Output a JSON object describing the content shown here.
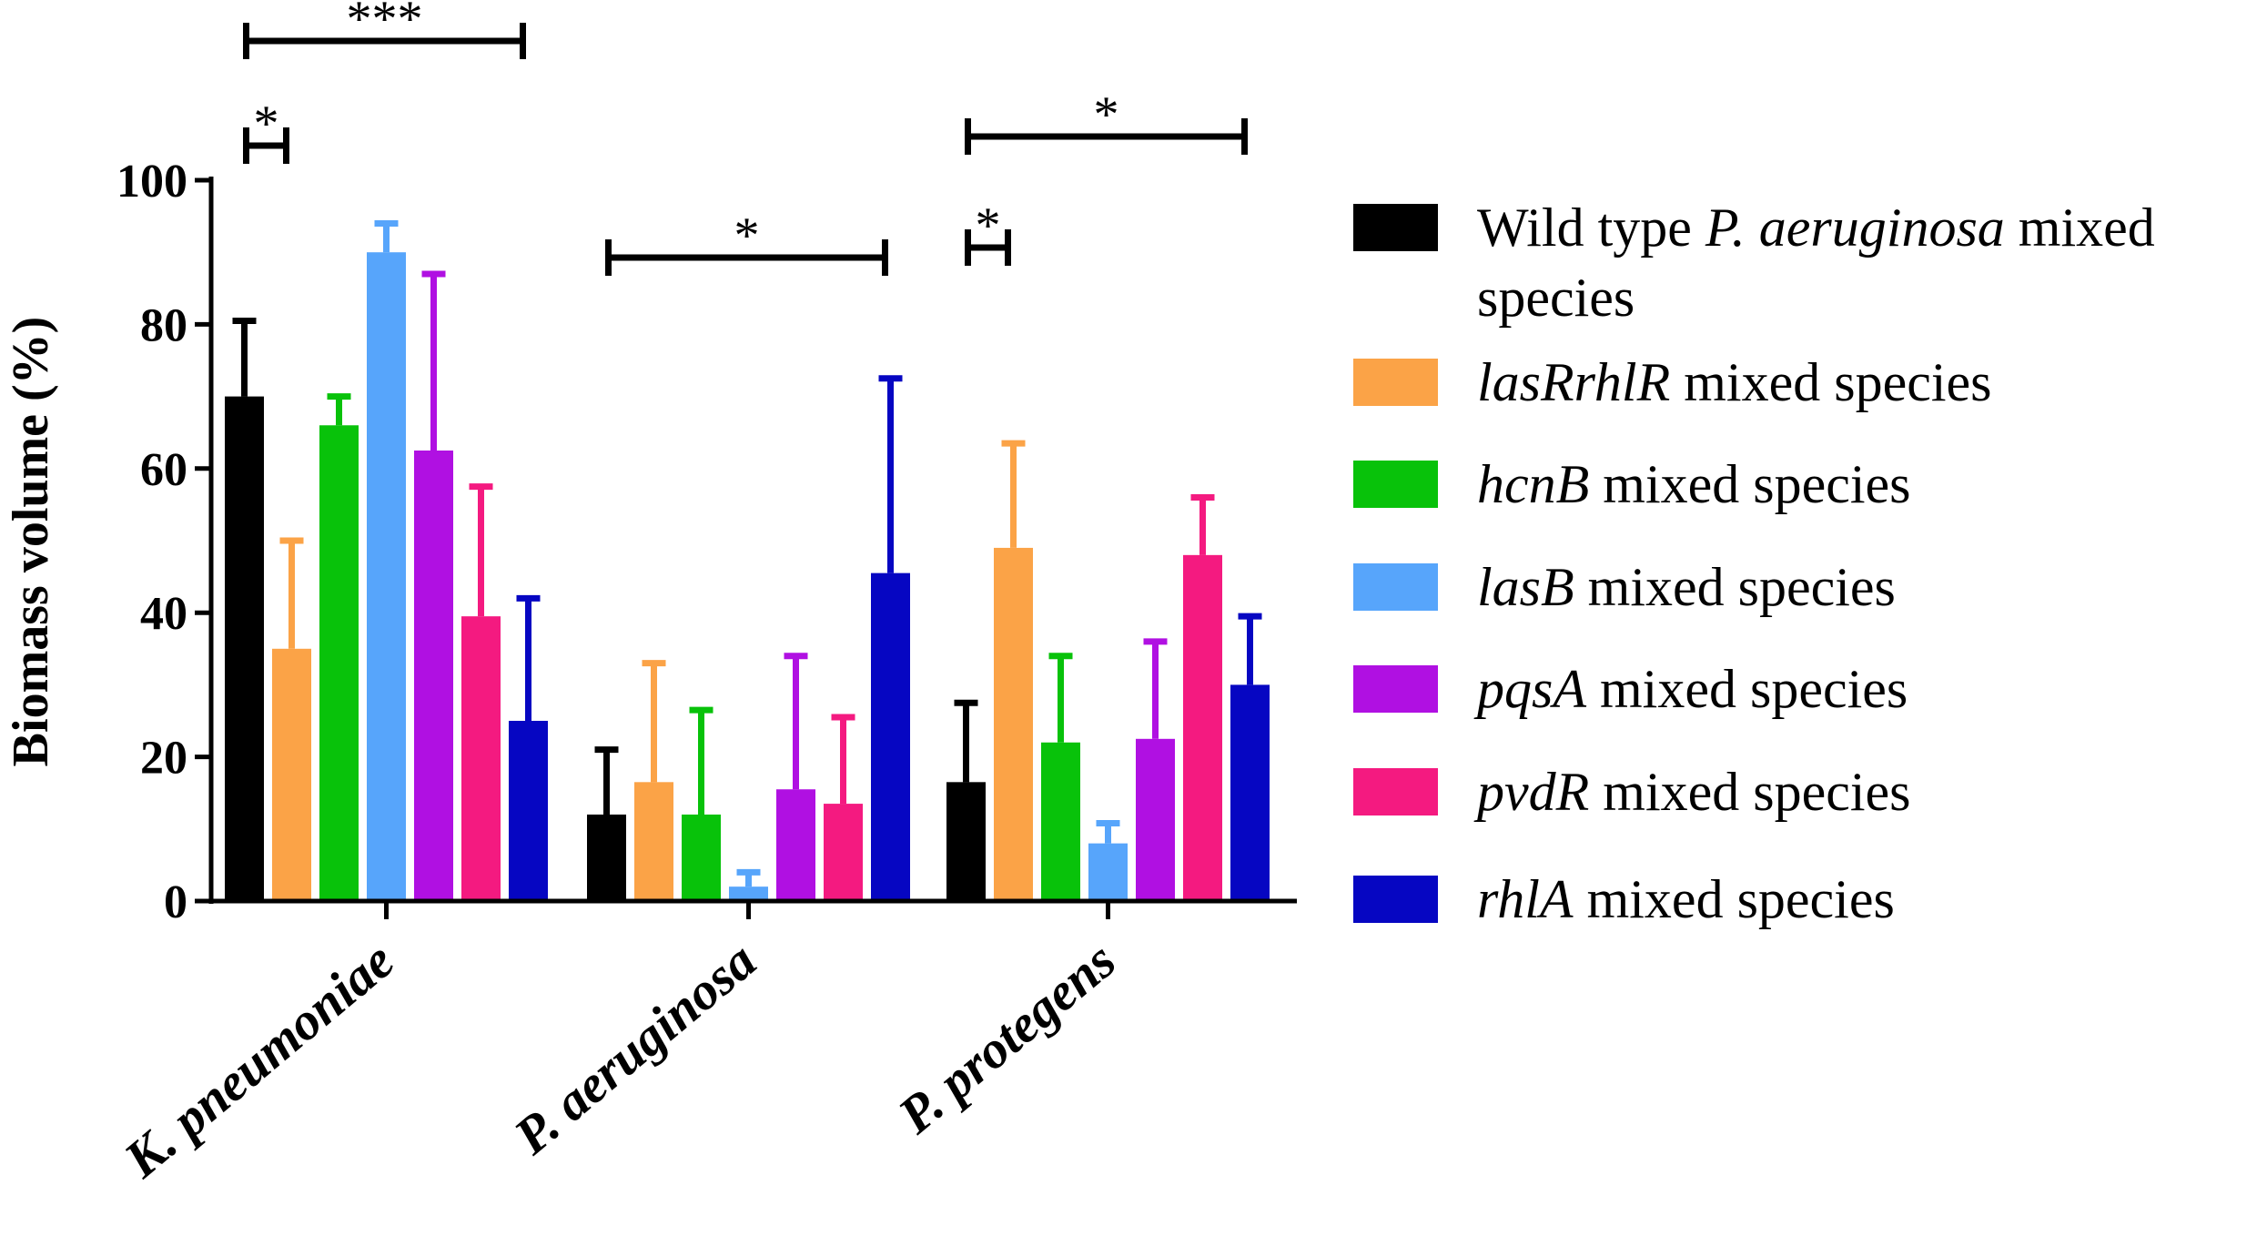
{
  "chart_data": {
    "type": "bar",
    "ylabel": "Biomass volume  (%)",
    "xlabel": "",
    "ylim": [
      0,
      100
    ],
    "yticks": [
      "0",
      "20",
      "40",
      "60",
      "80",
      "100"
    ],
    "categories": [
      "K. pneumoniae",
      "P. aeruginosa",
      "P. protegens"
    ],
    "series": [
      {
        "name": "Wild type P. aeruginosa mixed species",
        "color": "#000000",
        "values": [
          70,
          12,
          16.5
        ],
        "errors": [
          10.5,
          9,
          11
        ]
      },
      {
        "name": "lasRrhlR mixed species",
        "color": "#fba347",
        "values": [
          35,
          16.5,
          49
        ],
        "errors": [
          15,
          16.5,
          14.5
        ]
      },
      {
        "name": "hcnB mixed species",
        "color": "#08c20a",
        "values": [
          66,
          12,
          22
        ],
        "errors": [
          4,
          14.5,
          12
        ]
      },
      {
        "name": "lasB mixed species",
        "color": "#57a5fb",
        "values": [
          90,
          2,
          8
        ],
        "errors": [
          4,
          2,
          2.8
        ]
      },
      {
        "name": "pqsA mixed species",
        "color": "#b010e2",
        "values": [
          62.5,
          15.5,
          22.5
        ],
        "errors": [
          24.5,
          18.5,
          13.5
        ]
      },
      {
        "name": "pvdR mixed species",
        "color": "#f41a80",
        "values": [
          39.5,
          13.5,
          48
        ],
        "errors": [
          18,
          12,
          8
        ]
      },
      {
        "name": "rhlA mixed species",
        "color": "#0606c2",
        "values": [
          25,
          45.5,
          30
        ],
        "errors": [
          17,
          27,
          9.5
        ]
      }
    ],
    "legend": [
      {
        "italic_pre": "",
        "plain_pre": "Wild type ",
        "italic": "P. aeruginosa",
        "plain": " mixed",
        "line2": "species"
      },
      {
        "italic": "lasRrhlR",
        "plain": " mixed species"
      },
      {
        "italic": "hcnB",
        "plain": " mixed species"
      },
      {
        "italic": "lasB",
        "plain": " mixed species"
      },
      {
        "italic": "pqsA",
        "plain": " mixed species"
      },
      {
        "italic": "pvdR",
        "plain": " mixed species"
      },
      {
        "italic": "rhlA",
        "plain": " mixed species"
      }
    ],
    "legend_position": "right",
    "significance": [
      {
        "label": "***",
        "group": 0,
        "from_series": 0,
        "to_series": 6
      },
      {
        "label": "*",
        "group": 0,
        "from_series": 0,
        "to_series": 1
      },
      {
        "label": "*",
        "group": 1,
        "from_series": 0,
        "to_series": 6
      },
      {
        "label": "*",
        "group": 2,
        "from_series": 0,
        "to_series": 1
      },
      {
        "label": "*",
        "group": 2,
        "from_series": 0,
        "to_series": 6
      }
    ]
  }
}
